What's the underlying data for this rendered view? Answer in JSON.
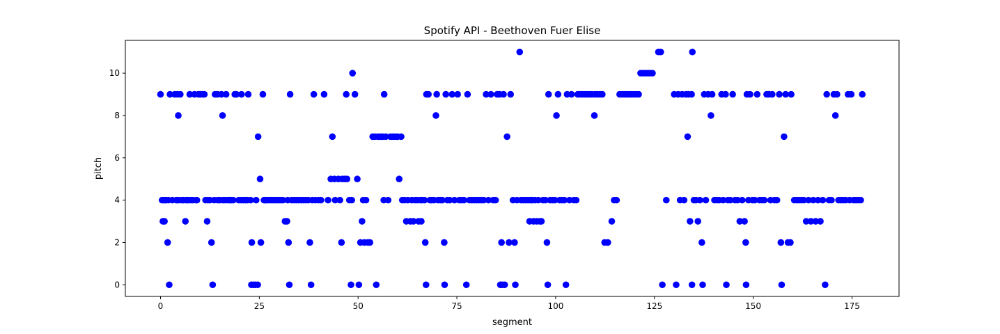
{
  "chart_data": {
    "type": "scatter",
    "title": "Spotify API - Beethoven Fuer Elise",
    "xlabel": "segment",
    "ylabel": "pitch",
    "xlim": [
      -8.9,
      186.9
    ],
    "ylim": [
      -0.55,
      11.55
    ],
    "xticks": [
      0,
      25,
      50,
      75,
      100,
      125,
      150,
      175
    ],
    "yticks": [
      0,
      2,
      4,
      6,
      8,
      10
    ],
    "grid": false,
    "marker_color": "#0000ff",
    "points": [
      [
        0.0,
        9
      ],
      [
        0.4,
        4
      ],
      [
        0.6,
        3
      ],
      [
        0.8,
        4
      ],
      [
        1.0,
        3
      ],
      [
        1.2,
        4
      ],
      [
        1.4,
        4
      ],
      [
        1.8,
        2
      ],
      [
        2.0,
        4
      ],
      [
        2.2,
        0
      ],
      [
        2.4,
        9
      ],
      [
        3.0,
        4
      ],
      [
        3.6,
        9
      ],
      [
        4.0,
        4
      ],
      [
        4.3,
        9
      ],
      [
        4.5,
        8
      ],
      [
        4.6,
        4
      ],
      [
        5.0,
        9
      ],
      [
        5.4,
        4
      ],
      [
        5.8,
        4
      ],
      [
        6.3,
        3
      ],
      [
        6.5,
        4
      ],
      [
        6.8,
        4
      ],
      [
        7.2,
        4
      ],
      [
        7.4,
        9
      ],
      [
        7.8,
        4
      ],
      [
        8.2,
        4
      ],
      [
        8.6,
        9
      ],
      [
        9.0,
        4
      ],
      [
        9.2,
        4
      ],
      [
        9.6,
        9
      ],
      [
        10.0,
        9
      ],
      [
        10.6,
        9
      ],
      [
        11.1,
        9
      ],
      [
        11.4,
        4
      ],
      [
        11.8,
        3
      ],
      [
        12.0,
        4
      ],
      [
        12.5,
        4
      ],
      [
        12.9,
        2
      ],
      [
        13.2,
        0
      ],
      [
        13.6,
        4
      ],
      [
        13.8,
        9
      ],
      [
        14.4,
        9
      ],
      [
        14.5,
        4
      ],
      [
        15.0,
        4
      ],
      [
        15.4,
        9
      ],
      [
        15.7,
        8
      ],
      [
        15.8,
        4
      ],
      [
        16.3,
        4
      ],
      [
        16.6,
        9
      ],
      [
        17.0,
        4
      ],
      [
        17.5,
        4
      ],
      [
        17.9,
        4
      ],
      [
        18.4,
        4
      ],
      [
        18.8,
        9
      ],
      [
        19.2,
        9
      ],
      [
        19.8,
        4
      ],
      [
        20.4,
        4
      ],
      [
        20.5,
        9
      ],
      [
        21.0,
        4
      ],
      [
        21.5,
        4
      ],
      [
        22.0,
        4
      ],
      [
        22.2,
        9
      ],
      [
        22.8,
        4
      ],
      [
        23.0,
        0
      ],
      [
        23.1,
        2
      ],
      [
        23.5,
        0
      ],
      [
        24.0,
        0
      ],
      [
        24.2,
        4
      ],
      [
        24.6,
        0
      ],
      [
        24.7,
        7
      ],
      [
        25.2,
        5
      ],
      [
        25.4,
        2
      ],
      [
        25.9,
        9
      ],
      [
        26.2,
        4
      ],
      [
        26.5,
        4
      ],
      [
        27.0,
        4
      ],
      [
        27.5,
        4
      ],
      [
        28.0,
        4
      ],
      [
        28.5,
        4
      ],
      [
        29.0,
        4
      ],
      [
        29.5,
        4
      ],
      [
        30.0,
        4
      ],
      [
        30.5,
        4
      ],
      [
        31.0,
        4
      ],
      [
        31.5,
        3
      ],
      [
        32.0,
        3
      ],
      [
        32.2,
        4
      ],
      [
        32.4,
        2
      ],
      [
        32.6,
        0
      ],
      [
        32.8,
        9
      ],
      [
        33.2,
        4
      ],
      [
        33.8,
        4
      ],
      [
        34.4,
        4
      ],
      [
        35.0,
        4
      ],
      [
        35.6,
        4
      ],
      [
        36.2,
        4
      ],
      [
        36.8,
        4
      ],
      [
        37.4,
        4
      ],
      [
        37.8,
        2
      ],
      [
        38.1,
        0
      ],
      [
        38.4,
        4
      ],
      [
        38.8,
        9
      ],
      [
        39.2,
        4
      ],
      [
        40.0,
        4
      ],
      [
        40.6,
        4
      ],
      [
        41.4,
        9
      ],
      [
        42.4,
        4
      ],
      [
        43.1,
        5
      ],
      [
        43.5,
        7
      ],
      [
        44.0,
        5
      ],
      [
        44.2,
        4
      ],
      [
        45.0,
        5
      ],
      [
        45.4,
        4
      ],
      [
        45.8,
        2
      ],
      [
        46.0,
        5
      ],
      [
        46.6,
        5
      ],
      [
        47.0,
        9
      ],
      [
        47.2,
        5
      ],
      [
        47.8,
        4
      ],
      [
        48.2,
        0
      ],
      [
        48.4,
        4
      ],
      [
        48.6,
        10
      ],
      [
        49.2,
        9
      ],
      [
        49.8,
        5
      ],
      [
        50.2,
        0
      ],
      [
        50.6,
        2
      ],
      [
        51.0,
        3
      ],
      [
        51.3,
        4
      ],
      [
        51.6,
        2
      ],
      [
        52.0,
        4
      ],
      [
        52.5,
        2
      ],
      [
        53.0,
        2
      ],
      [
        53.7,
        7
      ],
      [
        54.2,
        7
      ],
      [
        54.6,
        0
      ],
      [
        55.0,
        7
      ],
      [
        55.6,
        7
      ],
      [
        56.2,
        7
      ],
      [
        56.5,
        4
      ],
      [
        56.6,
        9
      ],
      [
        57.0,
        7
      ],
      [
        57.6,
        4
      ],
      [
        58.2,
        7
      ],
      [
        58.8,
        7
      ],
      [
        59.4,
        7
      ],
      [
        60.0,
        7
      ],
      [
        60.4,
        5
      ],
      [
        60.9,
        7
      ],
      [
        61.2,
        4
      ],
      [
        61.8,
        4
      ],
      [
        62.2,
        3
      ],
      [
        62.6,
        4
      ],
      [
        63.2,
        3
      ],
      [
        63.6,
        4
      ],
      [
        64.0,
        3
      ],
      [
        64.4,
        4
      ],
      [
        65.0,
        4
      ],
      [
        65.3,
        3
      ],
      [
        65.8,
        4
      ],
      [
        66.0,
        3
      ],
      [
        66.2,
        4
      ],
      [
        66.8,
        4
      ],
      [
        67.0,
        2
      ],
      [
        67.2,
        0
      ],
      [
        67.3,
        9
      ],
      [
        67.8,
        9
      ],
      [
        68.2,
        4
      ],
      [
        68.6,
        4
      ],
      [
        69.2,
        4
      ],
      [
        69.7,
        8
      ],
      [
        69.9,
        9
      ],
      [
        70.2,
        4
      ],
      [
        70.8,
        4
      ],
      [
        71.3,
        4
      ],
      [
        71.8,
        2
      ],
      [
        71.9,
        0
      ],
      [
        72.2,
        9
      ],
      [
        72.6,
        4
      ],
      [
        73.2,
        4
      ],
      [
        73.8,
        9
      ],
      [
        74.4,
        4
      ],
      [
        75.2,
        9
      ],
      [
        75.6,
        4
      ],
      [
        76.2,
        4
      ],
      [
        76.8,
        4
      ],
      [
        77.4,
        0
      ],
      [
        77.7,
        9
      ],
      [
        78.2,
        4
      ],
      [
        78.8,
        4
      ],
      [
        79.4,
        4
      ],
      [
        80.0,
        4
      ],
      [
        80.6,
        4
      ],
      [
        81.2,
        4
      ],
      [
        81.8,
        4
      ],
      [
        82.4,
        9
      ],
      [
        83.0,
        4
      ],
      [
        83.6,
        9
      ],
      [
        84.2,
        4
      ],
      [
        84.8,
        4
      ],
      [
        85.2,
        9
      ],
      [
        85.8,
        9
      ],
      [
        86.0,
        0
      ],
      [
        86.3,
        2
      ],
      [
        86.5,
        0
      ],
      [
        86.8,
        9
      ],
      [
        87.1,
        0
      ],
      [
        87.7,
        7
      ],
      [
        88.2,
        2
      ],
      [
        88.6,
        9
      ],
      [
        89.2,
        4
      ],
      [
        89.6,
        2
      ],
      [
        89.8,
        0
      ],
      [
        90.2,
        4
      ],
      [
        90.9,
        11
      ],
      [
        91.2,
        4
      ],
      [
        91.8,
        4
      ],
      [
        92.4,
        4
      ],
      [
        93.0,
        4
      ],
      [
        93.4,
        3
      ],
      [
        93.6,
        4
      ],
      [
        94.1,
        4
      ],
      [
        94.4,
        3
      ],
      [
        94.8,
        4
      ],
      [
        95.2,
        3
      ],
      [
        95.6,
        4
      ],
      [
        96.0,
        3
      ],
      [
        96.4,
        3
      ],
      [
        96.8,
        4
      ],
      [
        97.4,
        4
      ],
      [
        97.8,
        2
      ],
      [
        98.0,
        0
      ],
      [
        98.2,
        9
      ],
      [
        98.6,
        4
      ],
      [
        99.2,
        4
      ],
      [
        99.8,
        4
      ],
      [
        100.2,
        8
      ],
      [
        100.6,
        9
      ],
      [
        101.0,
        4
      ],
      [
        101.6,
        4
      ],
      [
        102.2,
        4
      ],
      [
        102.6,
        0
      ],
      [
        102.9,
        9
      ],
      [
        103.5,
        4
      ],
      [
        104.0,
        9
      ],
      [
        104.6,
        4
      ],
      [
        105.2,
        4
      ],
      [
        105.6,
        9
      ],
      [
        106.2,
        9
      ],
      [
        106.8,
        9
      ],
      [
        107.4,
        9
      ],
      [
        108.0,
        9
      ],
      [
        108.6,
        9
      ],
      [
        109.2,
        9
      ],
      [
        109.8,
        8
      ],
      [
        110.0,
        9
      ],
      [
        110.6,
        9
      ],
      [
        111.2,
        9
      ],
      [
        111.8,
        9
      ],
      [
        112.4,
        2
      ],
      [
        113.2,
        2
      ],
      [
        114.2,
        3
      ],
      [
        114.8,
        4
      ],
      [
        115.4,
        4
      ],
      [
        116.2,
        9
      ],
      [
        116.8,
        9
      ],
      [
        117.4,
        9
      ],
      [
        118.0,
        9
      ],
      [
        118.6,
        9
      ],
      [
        119.2,
        9
      ],
      [
        119.8,
        9
      ],
      [
        120.4,
        9
      ],
      [
        121.0,
        9
      ],
      [
        121.5,
        10
      ],
      [
        122.1,
        10
      ],
      [
        122.7,
        10
      ],
      [
        123.3,
        10
      ],
      [
        123.9,
        10
      ],
      [
        124.5,
        10
      ],
      [
        126.0,
        11
      ],
      [
        126.6,
        11
      ],
      [
        127.0,
        0
      ],
      [
        128.0,
        4
      ],
      [
        130.0,
        9
      ],
      [
        130.5,
        0
      ],
      [
        131.0,
        9
      ],
      [
        131.5,
        4
      ],
      [
        132.0,
        9
      ],
      [
        132.5,
        4
      ],
      [
        133.0,
        9
      ],
      [
        133.4,
        7
      ],
      [
        133.6,
        9
      ],
      [
        134.0,
        3
      ],
      [
        134.4,
        9
      ],
      [
        134.5,
        0
      ],
      [
        134.6,
        11
      ],
      [
        135.0,
        4
      ],
      [
        135.5,
        4
      ],
      [
        136.0,
        3
      ],
      [
        136.5,
        4
      ],
      [
        137.0,
        2
      ],
      [
        137.2,
        0
      ],
      [
        137.6,
        9
      ],
      [
        138.0,
        4
      ],
      [
        138.6,
        9
      ],
      [
        139.3,
        8
      ],
      [
        139.6,
        9
      ],
      [
        140.2,
        4
      ],
      [
        140.8,
        4
      ],
      [
        141.4,
        4
      ],
      [
        142.0,
        9
      ],
      [
        142.4,
        4
      ],
      [
        143.0,
        9
      ],
      [
        143.2,
        0
      ],
      [
        143.6,
        4
      ],
      [
        144.2,
        4
      ],
      [
        144.8,
        9
      ],
      [
        145.4,
        4
      ],
      [
        146.0,
        4
      ],
      [
        146.6,
        3
      ],
      [
        147.2,
        4
      ],
      [
        147.8,
        3
      ],
      [
        148.1,
        2
      ],
      [
        148.2,
        0
      ],
      [
        148.4,
        9
      ],
      [
        148.8,
        4
      ],
      [
        149.2,
        9
      ],
      [
        149.8,
        4
      ],
      [
        150.4,
        4
      ],
      [
        151.0,
        9
      ],
      [
        151.6,
        4
      ],
      [
        152.2,
        4
      ],
      [
        152.8,
        4
      ],
      [
        153.4,
        9
      ],
      [
        154.0,
        9
      ],
      [
        154.4,
        4
      ],
      [
        154.8,
        9
      ],
      [
        155.4,
        4
      ],
      [
        156.0,
        4
      ],
      [
        156.6,
        9
      ],
      [
        157.0,
        2
      ],
      [
        157.2,
        0
      ],
      [
        157.8,
        7
      ],
      [
        158.2,
        9
      ],
      [
        158.8,
        2
      ],
      [
        159.4,
        2
      ],
      [
        159.6,
        9
      ],
      [
        160.4,
        4
      ],
      [
        161.0,
        4
      ],
      [
        161.6,
        4
      ],
      [
        162.2,
        4
      ],
      [
        162.8,
        4
      ],
      [
        163.4,
        3
      ],
      [
        164.0,
        4
      ],
      [
        164.6,
        3
      ],
      [
        165.2,
        4
      ],
      [
        165.8,
        3
      ],
      [
        166.4,
        4
      ],
      [
        167.0,
        3
      ],
      [
        167.6,
        4
      ],
      [
        168.2,
        0
      ],
      [
        168.6,
        9
      ],
      [
        169.2,
        4
      ],
      [
        169.8,
        4
      ],
      [
        170.4,
        9
      ],
      [
        170.8,
        8
      ],
      [
        171.2,
        9
      ],
      [
        171.6,
        4
      ],
      [
        172.2,
        4
      ],
      [
        172.8,
        4
      ],
      [
        173.4,
        4
      ],
      [
        174.0,
        9
      ],
      [
        174.4,
        4
      ],
      [
        174.8,
        9
      ],
      [
        175.4,
        4
      ],
      [
        176.0,
        4
      ],
      [
        176.6,
        4
      ],
      [
        177.2,
        4
      ],
      [
        177.6,
        9
      ]
    ]
  }
}
